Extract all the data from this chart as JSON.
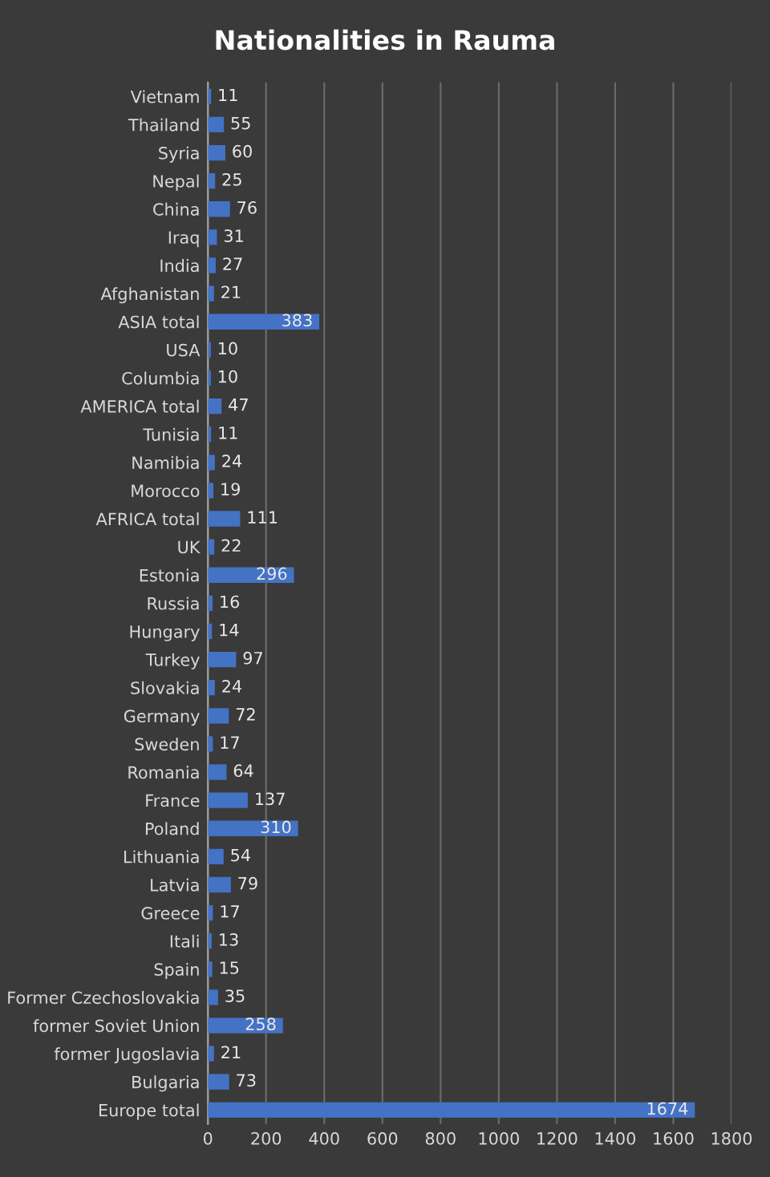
{
  "chart_data": {
    "type": "bar",
    "orientation": "horizontal",
    "title": "Nationalities in Rauma",
    "categories": [
      "Vietnam",
      "Thailand",
      "Syria",
      "Nepal",
      "China",
      "Iraq",
      "India",
      "Afghanistan",
      "ASIA total",
      "USA",
      "Columbia",
      "AMERICA total",
      "Tunisia",
      "Namibia",
      "Morocco",
      "AFRICA total",
      "UK",
      "Estonia",
      "Russia",
      "Hungary",
      "Turkey",
      "Slovakia",
      "Germany",
      "Sweden",
      "Romania",
      "France",
      "Poland",
      "Lithuania",
      "Latvia",
      "Greece",
      "Itali",
      "Spain",
      "Former Czechoslovakia",
      "former Soviet Union",
      "former Jugoslavia",
      "Bulgaria",
      "Europe total"
    ],
    "values": [
      11,
      55,
      60,
      25,
      76,
      31,
      27,
      21,
      383,
      10,
      10,
      47,
      11,
      24,
      19,
      111,
      22,
      296,
      16,
      14,
      97,
      24,
      72,
      17,
      64,
      137,
      310,
      54,
      79,
      17,
      13,
      15,
      35,
      258,
      21,
      73,
      1674
    ],
    "color": "#4472c4",
    "xlim": [
      0,
      1800
    ],
    "xticks": [
      0,
      200,
      400,
      600,
      800,
      1000,
      1200,
      1400,
      1600,
      1800
    ],
    "grid": "x",
    "data_labels": true
  }
}
